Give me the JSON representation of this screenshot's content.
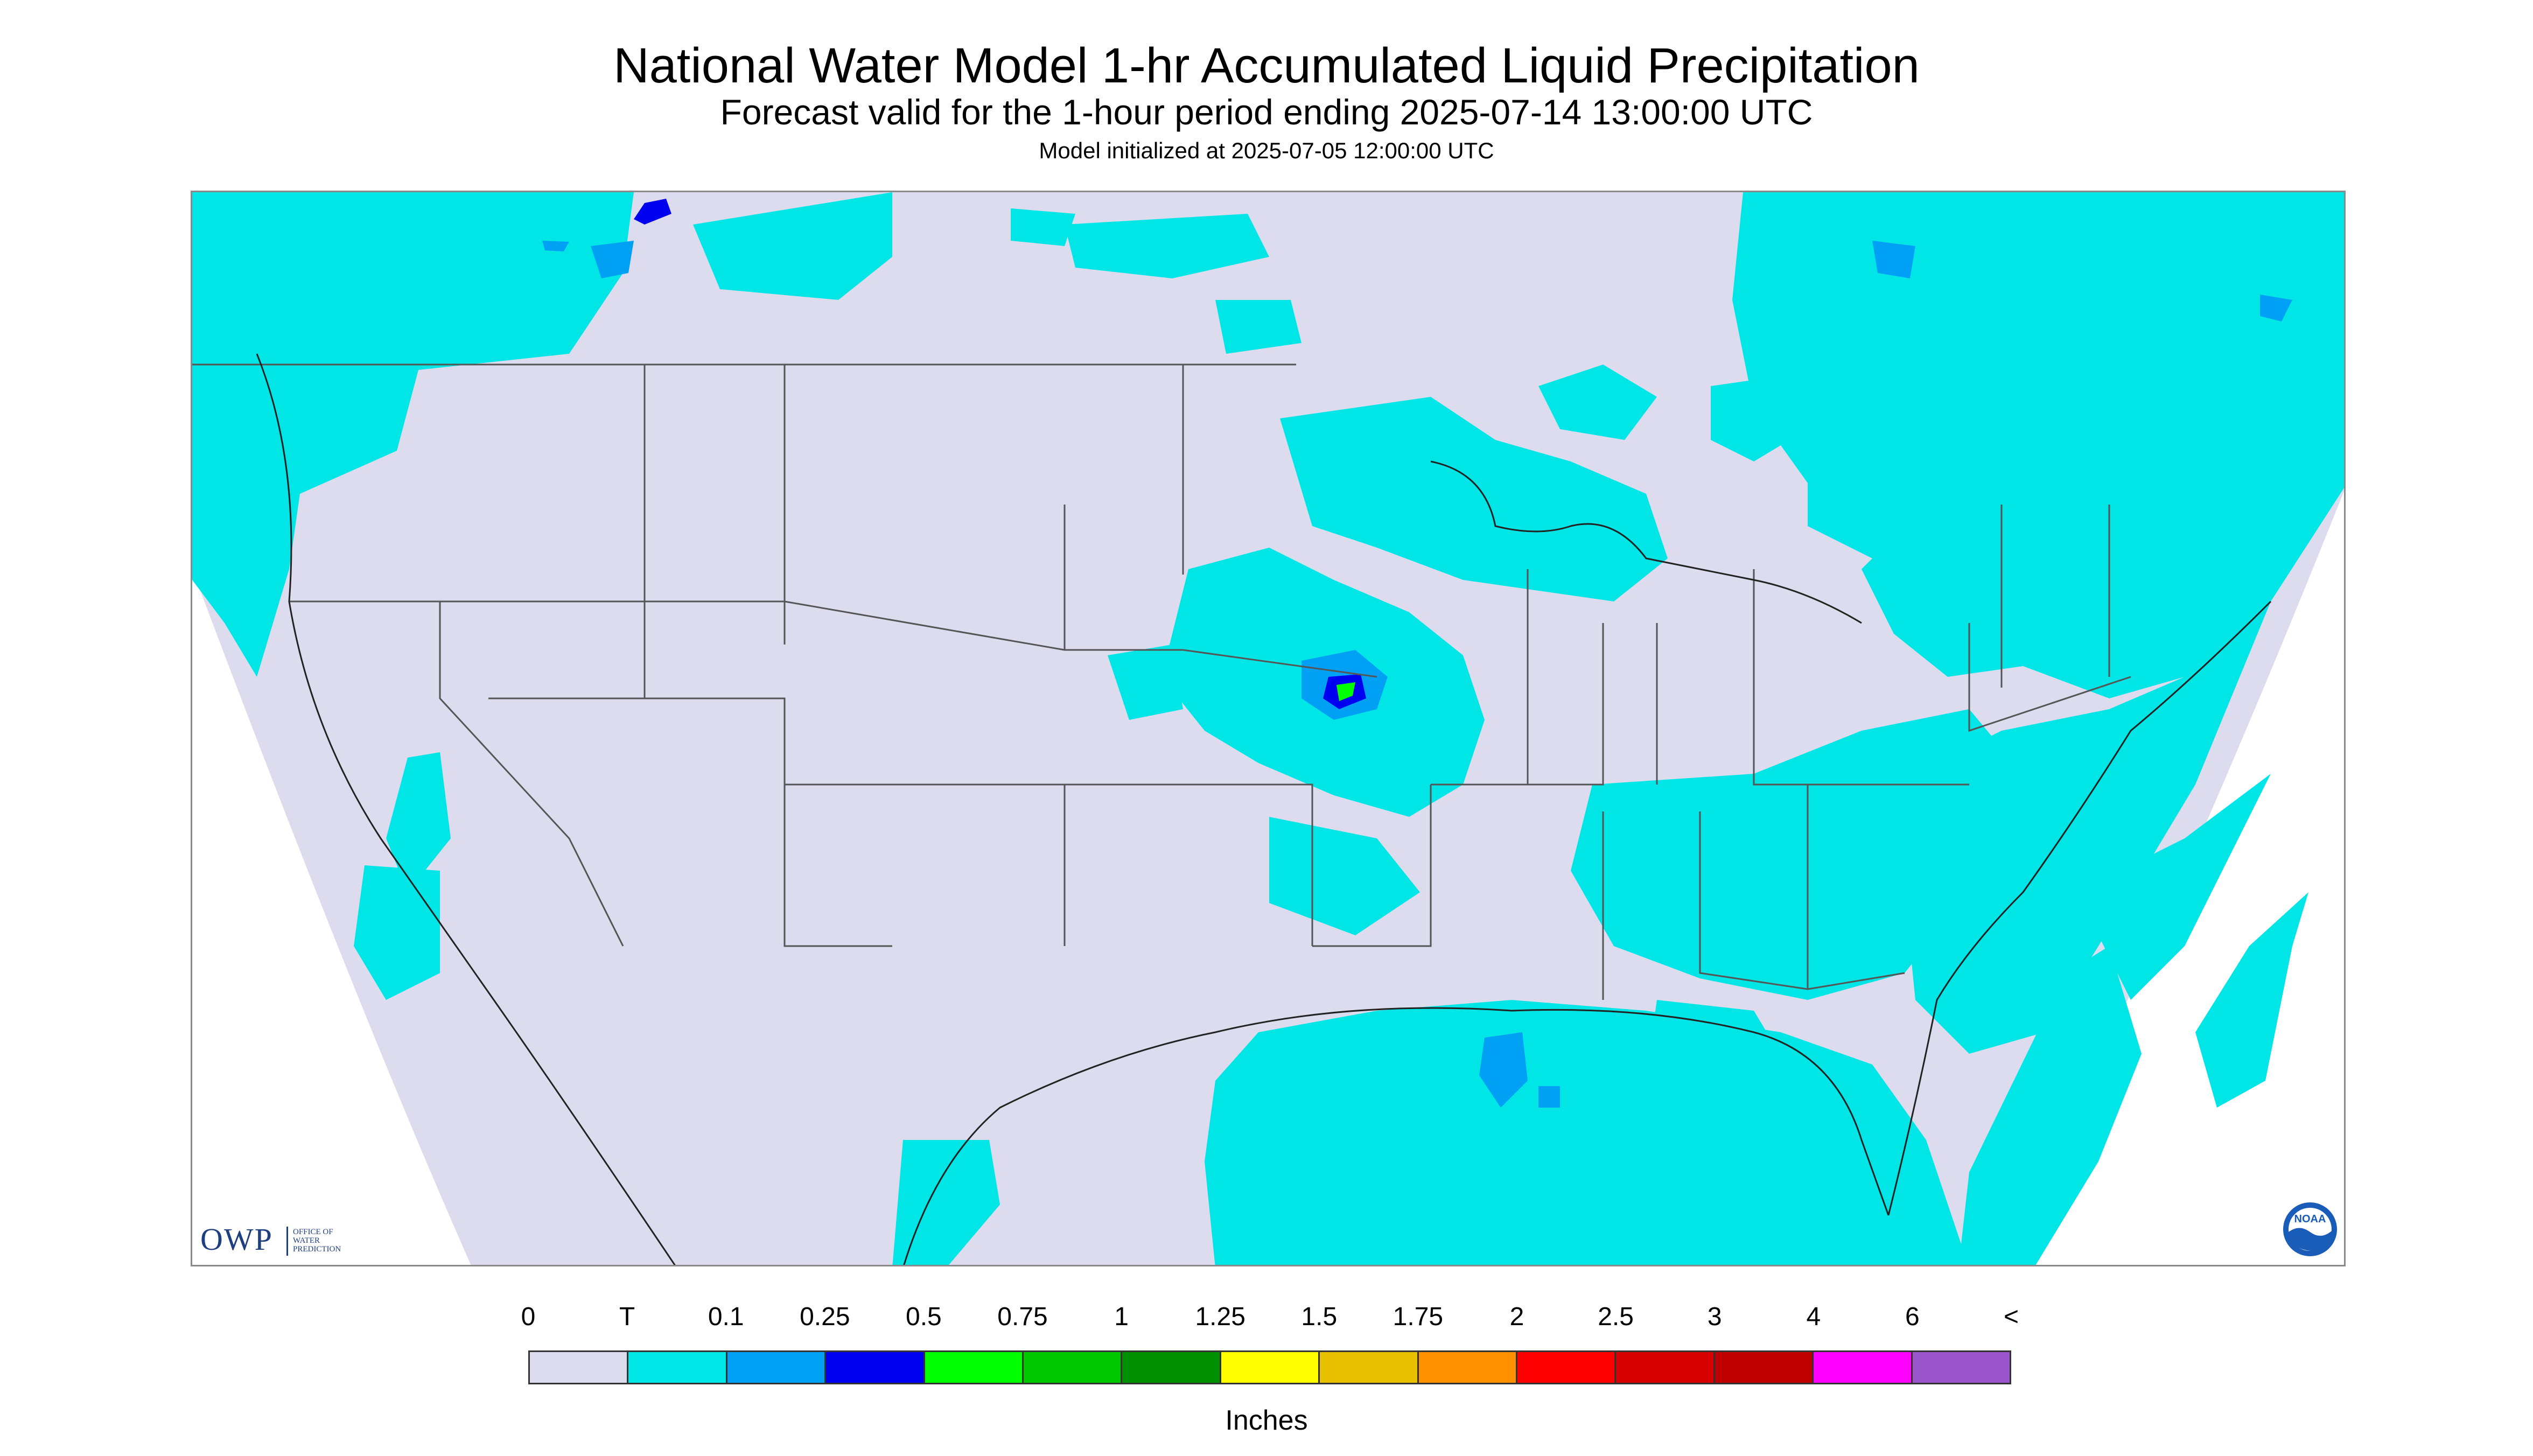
{
  "header": {
    "title": "National Water Model 1-hr Accumulated Liquid Precipitation",
    "subtitle": "Forecast valid for the 1-hour period ending 2025-07-14 13:00:00 UTC",
    "init_line": "Model initialized at 2025-07-05 12:00:00 UTC"
  },
  "logos": {
    "owp_word": "OWP",
    "owp_lines": [
      "OFFICE OF",
      "WATER",
      "PREDICTION"
    ],
    "noaa_word": "NOAA"
  },
  "map": {
    "region": "Continental United States",
    "colors": {
      "no_precip": "#dcdcee",
      "trace": "#00e5e5",
      "light": "#00a0f5",
      "moderate": "#0000f0",
      "heavy": "#00ff00",
      "boundary": "#555555"
    }
  },
  "legend": {
    "labels": [
      "0",
      "T",
      "0.1",
      "0.25",
      "0.5",
      "0.75",
      "1",
      "1.25",
      "1.5",
      "1.75",
      "2",
      "2.5",
      "3",
      "4",
      "6",
      "<"
    ],
    "colors": [
      "#dcdcee",
      "#00e5e5",
      "#00a0f5",
      "#0000f0",
      "#00ff00",
      "#00c800",
      "#009000",
      "#ffff00",
      "#e7c000",
      "#ff9000",
      "#ff0000",
      "#d60000",
      "#c00000",
      "#ff00ff",
      "#9955c9"
    ],
    "units": "Inches"
  }
}
